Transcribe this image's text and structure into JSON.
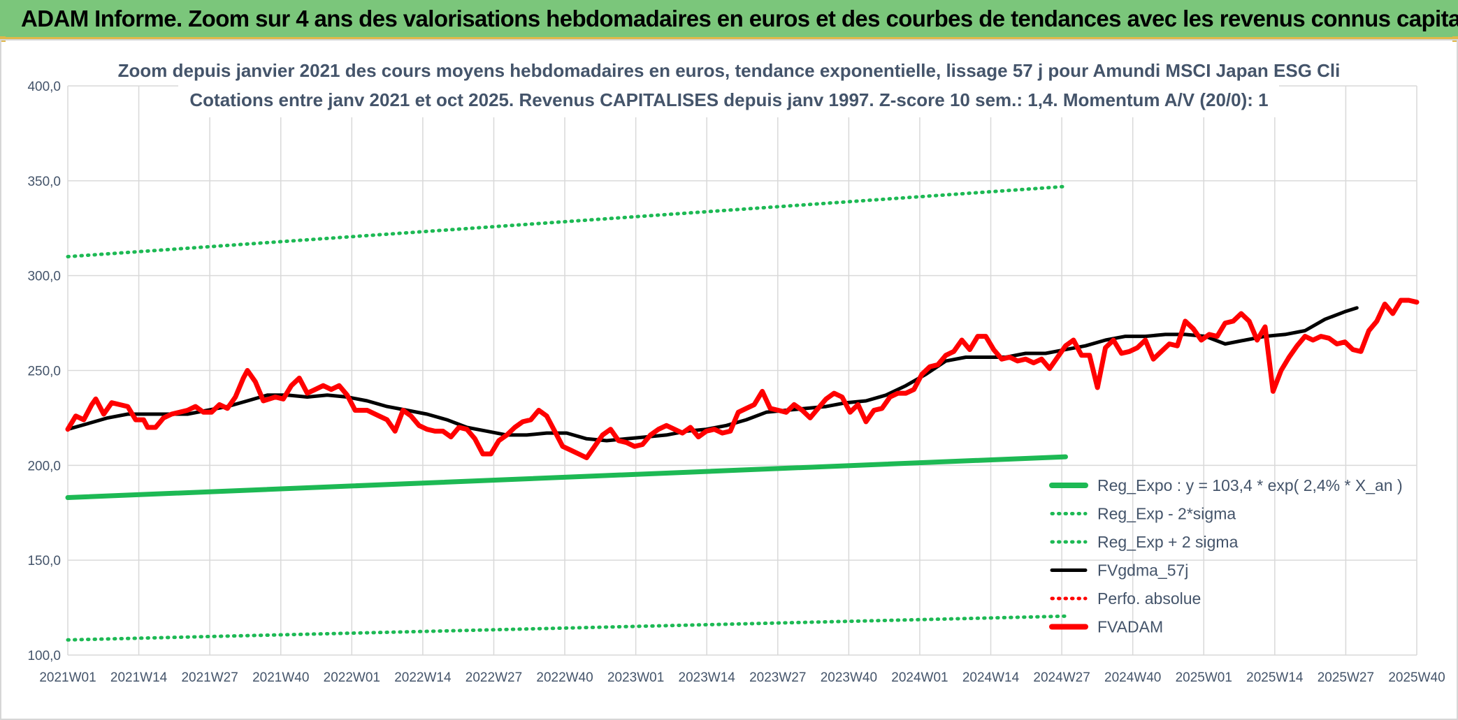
{
  "banner": {
    "title": "ADAM Informe. Zoom sur 4 ans des valorisations hebdomadaires en euros et des courbes de tendances avec les revenus connus capitalisés"
  },
  "colors": {
    "banner_bg": "#7bc67b",
    "accent_gold": "#e0b84a",
    "reg_green": "#1db954",
    "fvgdma_black": "#000000",
    "fvadam_red": "#ff0000",
    "grid": "#d9d9d9",
    "text": "#44546a"
  },
  "chart_data": {
    "type": "line",
    "title_line1": "Zoom depuis janvier 2021 des cours moyens hebdomadaires en euros, tendance exponentielle, lissage 57 j pour Amundi MSCI Japan ESG Cli",
    "title_line2": "Cotations entre janv 2021 et oct 2025. Revenus CAPITALISES depuis janv 1997. Z-score 10 sem.: 1,4. Momentum A/V (20/0): 1",
    "ylim": [
      100,
      400
    ],
    "y_ticks": [
      "100,0",
      "150,0",
      "200,0",
      "250,0",
      "300,0",
      "350,0",
      "400,0"
    ],
    "x_ticks": [
      "2021W01",
      "2021W14",
      "2021W27",
      "2021W40",
      "2022W01",
      "2022W14",
      "2022W27",
      "2022W40",
      "2023W01",
      "2023W14",
      "2023W27",
      "2023W40",
      "2024W01",
      "2024W14",
      "2024W27",
      "2024W40",
      "2025W01",
      "2025W14",
      "2025W27",
      "2025W40"
    ],
    "n_weeks": 250,
    "legend": [
      {
        "label": "Reg_Expo : y = 103,4 * exp( 2,4% *  X_an )",
        "color": "#1db954",
        "style": "solid-thick"
      },
      {
        "label": "Reg_Exp - 2*sigma",
        "color": "#1db954",
        "style": "dotted"
      },
      {
        "label": "Reg_Exp + 2 sigma",
        "color": "#1db954",
        "style": "dotted"
      },
      {
        "label": "FVgdma_57j",
        "color": "#000000",
        "style": "solid"
      },
      {
        "label": "Perfo. absolue",
        "color": "#ff0000",
        "style": "dotted"
      },
      {
        "label": "FVADAM",
        "color": "#ff0000",
        "style": "solid-thick"
      }
    ],
    "series": [
      {
        "name": "Reg_Expo",
        "anchors": [
          [
            0,
            183
          ],
          [
            250,
            204.5
          ]
        ]
      },
      {
        "name": "Reg_Exp - 2*sigma",
        "anchors": [
          [
            0,
            108
          ],
          [
            250,
            120.5
          ]
        ]
      },
      {
        "name": "Reg_Exp + 2 sigma",
        "anchors": [
          [
            0,
            310
          ],
          [
            250,
            347
          ]
        ]
      },
      {
        "name": "FVgdma_57j",
        "anchors": [
          [
            0,
            219
          ],
          [
            5,
            222
          ],
          [
            10,
            225
          ],
          [
            15,
            227
          ],
          [
            20,
            227
          ],
          [
            25,
            227
          ],
          [
            30,
            227
          ],
          [
            35,
            229
          ],
          [
            40,
            231
          ],
          [
            45,
            234
          ],
          [
            50,
            237
          ],
          [
            55,
            237
          ],
          [
            60,
            236
          ],
          [
            65,
            237
          ],
          [
            70,
            236
          ],
          [
            75,
            234
          ],
          [
            80,
            231
          ],
          [
            85,
            229
          ],
          [
            90,
            227
          ],
          [
            95,
            224
          ],
          [
            100,
            220
          ],
          [
            105,
            218
          ],
          [
            110,
            216
          ],
          [
            115,
            216
          ],
          [
            120,
            217
          ],
          [
            125,
            217
          ],
          [
            130,
            214
          ],
          [
            135,
            213
          ],
          [
            140,
            214
          ],
          [
            145,
            215
          ],
          [
            150,
            216
          ],
          [
            155,
            218
          ],
          [
            160,
            219
          ],
          [
            165,
            221
          ],
          [
            170,
            224
          ],
          [
            175,
            228
          ],
          [
            180,
            229
          ],
          [
            185,
            230
          ],
          [
            190,
            231
          ],
          [
            195,
            233
          ],
          [
            200,
            234
          ],
          [
            205,
            237
          ],
          [
            210,
            242
          ],
          [
            215,
            248
          ],
          [
            220,
            255
          ],
          [
            225,
            257
          ],
          [
            230,
            257
          ],
          [
            235,
            257
          ],
          [
            240,
            259
          ],
          [
            245,
            259
          ],
          [
            250,
            261
          ],
          [
            255,
            263
          ],
          [
            260,
            266
          ],
          [
            265,
            268
          ],
          [
            270,
            268
          ],
          [
            275,
            269
          ],
          [
            280,
            269
          ],
          [
            285,
            268
          ],
          [
            290,
            264
          ],
          [
            295,
            266
          ],
          [
            300,
            268
          ],
          [
            305,
            269
          ],
          [
            310,
            271
          ],
          [
            315,
            277
          ],
          [
            320,
            281
          ],
          [
            323,
            283
          ]
        ]
      },
      {
        "name": "FVADAM",
        "anchors": [
          [
            0,
            219
          ],
          [
            2,
            226
          ],
          [
            4,
            224
          ],
          [
            6,
            232
          ],
          [
            7,
            235
          ],
          [
            9,
            227
          ],
          [
            11,
            233
          ],
          [
            13,
            232
          ],
          [
            15,
            231
          ],
          [
            17,
            224
          ],
          [
            19,
            224
          ],
          [
            20,
            220
          ],
          [
            22,
            220
          ],
          [
            24,
            225
          ],
          [
            26,
            227
          ],
          [
            28,
            228
          ],
          [
            30,
            229
          ],
          [
            32,
            231
          ],
          [
            34,
            228
          ],
          [
            36,
            228
          ],
          [
            38,
            232
          ],
          [
            40,
            230
          ],
          [
            42,
            236
          ],
          [
            44,
            246
          ],
          [
            45,
            250
          ],
          [
            47,
            244
          ],
          [
            49,
            234
          ],
          [
            52,
            236
          ],
          [
            54,
            235
          ],
          [
            56,
            242
          ],
          [
            58,
            246
          ],
          [
            60,
            238
          ],
          [
            62,
            240
          ],
          [
            64,
            242
          ],
          [
            66,
            240
          ],
          [
            68,
            242
          ],
          [
            70,
            237
          ],
          [
            72,
            229
          ],
          [
            75,
            229
          ],
          [
            78,
            226
          ],
          [
            80,
            224
          ],
          [
            82,
            218
          ],
          [
            84,
            229
          ],
          [
            86,
            226
          ],
          [
            88,
            221
          ],
          [
            90,
            219
          ],
          [
            92,
            218
          ],
          [
            94,
            218
          ],
          [
            96,
            215
          ],
          [
            98,
            220
          ],
          [
            100,
            219
          ],
          [
            102,
            214
          ],
          [
            104,
            206
          ],
          [
            106,
            206
          ],
          [
            108,
            213
          ],
          [
            110,
            216
          ],
          [
            112,
            220
          ],
          [
            114,
            223
          ],
          [
            116,
            224
          ],
          [
            118,
            229
          ],
          [
            120,
            226
          ],
          [
            122,
            218
          ],
          [
            124,
            210
          ],
          [
            126,
            208
          ],
          [
            128,
            206
          ],
          [
            130,
            204
          ],
          [
            132,
            210
          ],
          [
            134,
            216
          ],
          [
            136,
            219
          ],
          [
            138,
            213
          ],
          [
            140,
            212
          ],
          [
            142,
            210
          ],
          [
            144,
            211
          ],
          [
            146,
            216
          ],
          [
            148,
            219
          ],
          [
            150,
            221
          ],
          [
            152,
            219
          ],
          [
            154,
            217
          ],
          [
            156,
            220
          ],
          [
            158,
            215
          ],
          [
            160,
            218
          ],
          [
            162,
            219
          ],
          [
            164,
            217
          ],
          [
            166,
            218
          ],
          [
            168,
            228
          ],
          [
            170,
            230
          ],
          [
            172,
            232
          ],
          [
            174,
            239
          ],
          [
            176,
            230
          ],
          [
            178,
            229
          ],
          [
            180,
            228
          ],
          [
            182,
            232
          ],
          [
            184,
            229
          ],
          [
            186,
            225
          ],
          [
            188,
            230
          ],
          [
            190,
            235
          ],
          [
            192,
            238
          ],
          [
            194,
            236
          ],
          [
            196,
            228
          ],
          [
            198,
            232
          ],
          [
            200,
            223
          ],
          [
            202,
            229
          ],
          [
            204,
            230
          ],
          [
            206,
            236
          ],
          [
            208,
            238
          ],
          [
            210,
            238
          ],
          [
            212,
            240
          ],
          [
            214,
            248
          ],
          [
            216,
            252
          ],
          [
            218,
            253
          ],
          [
            220,
            258
          ],
          [
            222,
            260
          ],
          [
            224,
            266
          ],
          [
            226,
            261
          ],
          [
            228,
            268
          ],
          [
            230,
            268
          ],
          [
            232,
            261
          ],
          [
            234,
            256
          ],
          [
            236,
            257
          ],
          [
            238,
            255
          ],
          [
            240,
            256
          ],
          [
            242,
            254
          ],
          [
            244,
            256
          ],
          [
            246,
            251
          ],
          [
            248,
            257
          ],
          [
            250,
            263
          ],
          [
            252,
            266
          ],
          [
            254,
            258
          ],
          [
            256,
            258
          ],
          [
            258,
            241
          ],
          [
            260,
            262
          ],
          [
            262,
            266
          ],
          [
            264,
            259
          ],
          [
            266,
            260
          ],
          [
            268,
            262
          ],
          [
            270,
            266
          ],
          [
            272,
            256
          ],
          [
            274,
            260
          ],
          [
            276,
            264
          ],
          [
            278,
            263
          ],
          [
            280,
            276
          ],
          [
            282,
            272
          ],
          [
            284,
            266
          ],
          [
            286,
            269
          ],
          [
            288,
            268
          ],
          [
            290,
            275
          ],
          [
            292,
            276
          ],
          [
            294,
            280
          ],
          [
            296,
            276
          ],
          [
            298,
            266
          ],
          [
            300,
            273
          ],
          [
            302,
            239
          ],
          [
            304,
            250
          ],
          [
            306,
            257
          ],
          [
            308,
            263
          ],
          [
            310,
            268
          ],
          [
            312,
            266
          ],
          [
            314,
            268
          ],
          [
            316,
            267
          ],
          [
            318,
            264
          ],
          [
            320,
            265
          ],
          [
            322,
            261
          ],
          [
            324,
            260
          ],
          [
            326,
            271
          ],
          [
            328,
            276
          ],
          [
            330,
            285
          ],
          [
            332,
            280
          ],
          [
            334,
            287
          ],
          [
            336,
            287
          ],
          [
            338,
            286
          ]
        ]
      }
    ]
  }
}
